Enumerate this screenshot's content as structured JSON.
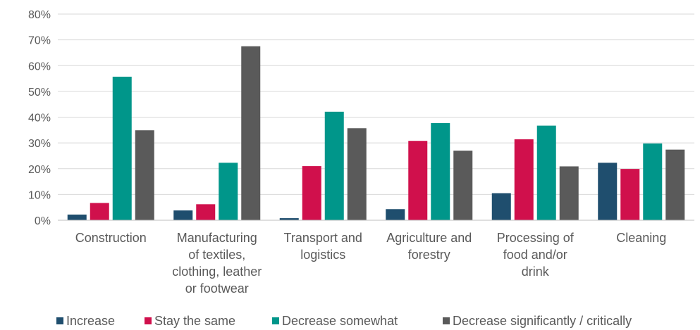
{
  "chart_data": {
    "type": "bar",
    "title": "",
    "xlabel": "",
    "ylabel": "",
    "ylim": [
      0,
      80
    ],
    "y_tick_step": 10,
    "y_tick_labels": [
      "0%",
      "10%",
      "20%",
      "30%",
      "40%",
      "50%",
      "60%",
      "70%",
      "80%"
    ],
    "grid": true,
    "legend_position": "bottom",
    "categories": [
      [
        "Construction"
      ],
      [
        "Manufacturing",
        "of textiles,",
        "clothing, leather",
        "or footwear"
      ],
      [
        "Transport and",
        "logistics"
      ],
      [
        "Agriculture and",
        "forestry"
      ],
      [
        "Processing of",
        "food and/or",
        "drink"
      ],
      [
        "Cleaning"
      ]
    ],
    "series": [
      {
        "name": "Increase",
        "color": "#1f4e6e",
        "values": [
          2.2,
          3.8,
          0.8,
          4.3,
          10.5,
          22.3
        ]
      },
      {
        "name": "Stay the same",
        "color": "#d0104c",
        "values": [
          6.7,
          6.2,
          21.0,
          30.8,
          31.4,
          19.9
        ]
      },
      {
        "name": "Decrease somewhat",
        "color": "#00968a",
        "values": [
          55.7,
          22.3,
          42.1,
          37.7,
          36.7,
          29.8
        ]
      },
      {
        "name": "Decrease significantly / critically",
        "color": "#5a5a5a",
        "values": [
          34.9,
          67.5,
          35.7,
          27.0,
          20.9,
          27.4
        ]
      }
    ]
  }
}
